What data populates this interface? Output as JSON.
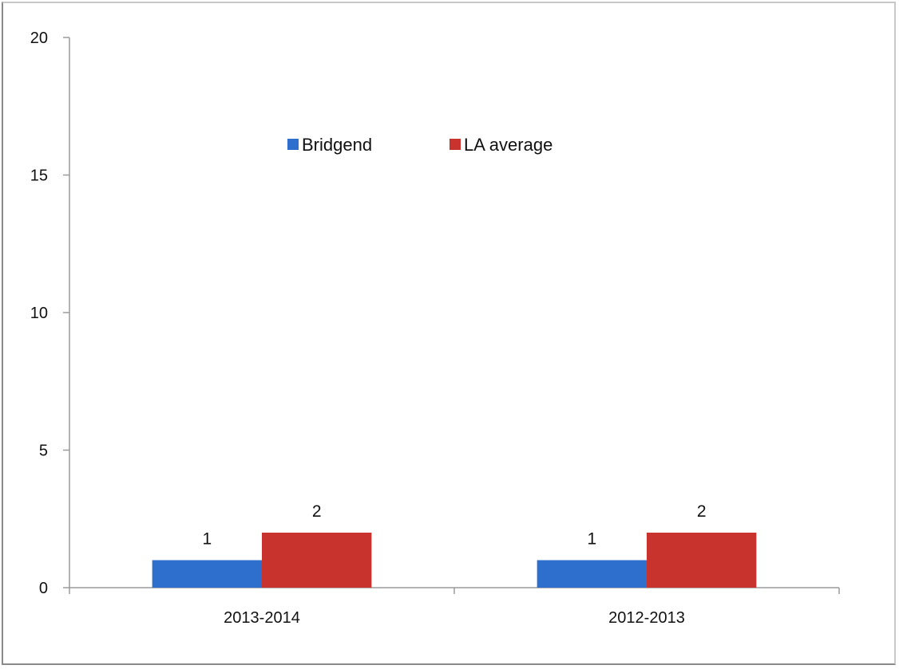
{
  "chart_data": {
    "type": "bar",
    "categories": [
      "2013-2014",
      "2012-2013"
    ],
    "series": [
      {
        "name": "Bridgend",
        "values": [
          1,
          1
        ],
        "color": "#2e6fce"
      },
      {
        "name": "LA average",
        "values": [
          2,
          2
        ],
        "color": "#c8332d"
      }
    ],
    "ylim": [
      0,
      20
    ],
    "yticks": [
      0,
      5,
      10,
      15,
      20
    ],
    "grid": false,
    "legend_position": "top-center",
    "data_labels": true
  }
}
